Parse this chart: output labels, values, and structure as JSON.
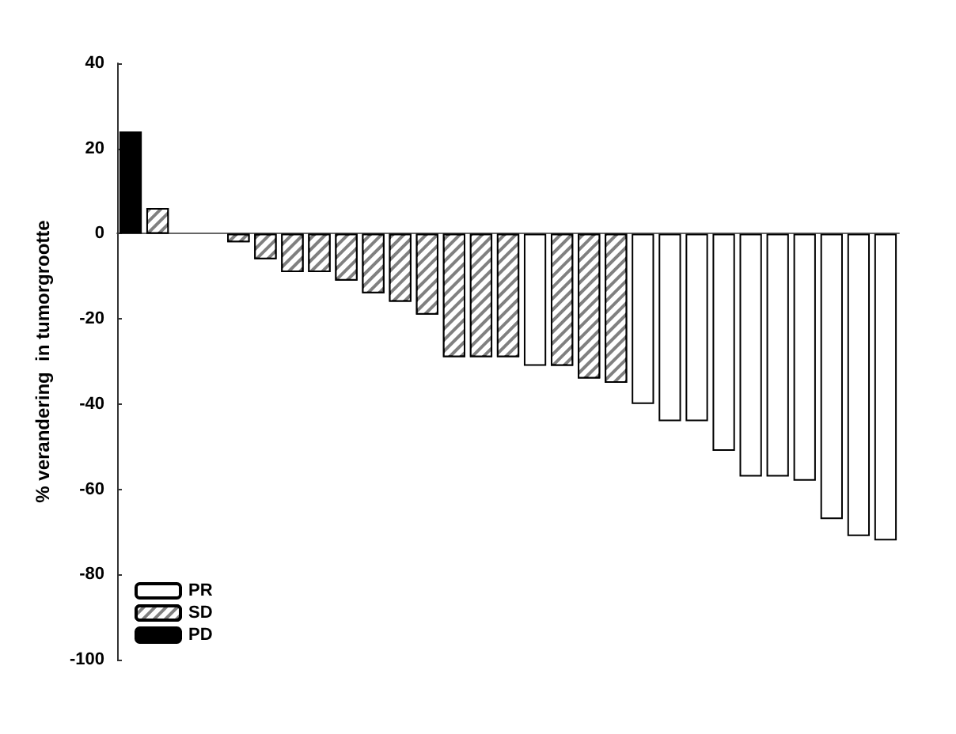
{
  "chart_data": {
    "type": "bar",
    "ylabel": "% verandering  in tumorgrootte",
    "categories": [
      null,
      null,
      null,
      null,
      null,
      null,
      null,
      null,
      null,
      null,
      null,
      null,
      null,
      null,
      null,
      null,
      null,
      null,
      null,
      null,
      null,
      null,
      null,
      null,
      null,
      null,
      null,
      null,
      null
    ],
    "series": [
      {
        "name": "PR",
        "color": "#ffffff",
        "values": [
          null,
          null,
          null,
          null,
          null,
          null,
          null,
          null,
          null,
          null,
          null,
          null,
          null,
          null,
          null,
          -31,
          null,
          null,
          null,
          -40,
          -44,
          -44,
          -51,
          -57,
          -57,
          -58,
          -67,
          -71,
          -72
        ]
      },
      {
        "name": "SD",
        "color": "#808080",
        "values": [
          null,
          6,
          null,
          null,
          -2,
          -6,
          -9,
          -9,
          -11,
          -14,
          -16,
          -19,
          -29,
          -29,
          -29,
          null,
          -31,
          -34,
          -35,
          null,
          null,
          null,
          null,
          null,
          null,
          null,
          null,
          null,
          null
        ]
      },
      {
        "name": "PD",
        "color": "#000000",
        "values": [
          24,
          null,
          null,
          null,
          null,
          null,
          null,
          null,
          null,
          null,
          null,
          null,
          null,
          null,
          null,
          null,
          null,
          null,
          null,
          null,
          null,
          null,
          null,
          null,
          null,
          null,
          null,
          null,
          null
        ]
      }
    ],
    "ylim": [
      -100,
      40
    ],
    "yticks": [
      -100,
      -80,
      -60,
      -40,
      -20,
      0,
      20,
      40
    ],
    "stacked": true,
    "legend": "bottom left",
    "tick_labels": "y"
  }
}
